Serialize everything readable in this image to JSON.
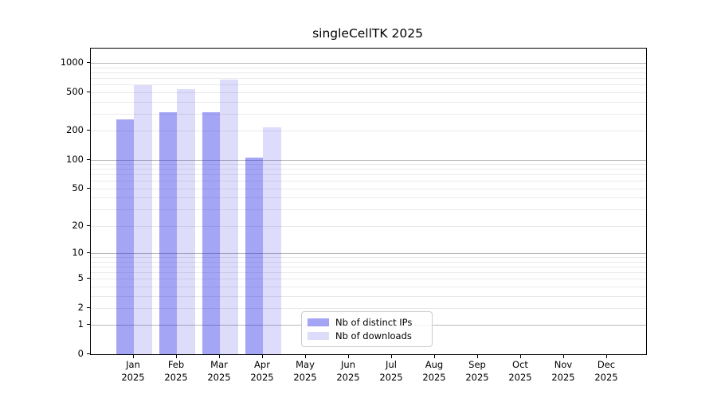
{
  "title": "singleCellTK 2025",
  "chart_data": {
    "type": "bar",
    "title": "singleCellTK 2025",
    "x_tick_months": [
      "Jan",
      "Feb",
      "Mar",
      "Apr",
      "May",
      "Jun",
      "Jul",
      "Aug",
      "Sep",
      "Oct",
      "Nov",
      "Dec"
    ],
    "x_tick_year": "2025",
    "categories": [
      "Jan 2025",
      "Feb 2025",
      "Mar 2025",
      "Apr 2025",
      "May 2025",
      "Jun 2025",
      "Jul 2025",
      "Aug 2025",
      "Sep 2025",
      "Oct 2025",
      "Nov 2025",
      "Dec 2025"
    ],
    "series": [
      {
        "name": "Nb of distinct IPs",
        "color": "#a5a5f1",
        "rgba": "rgba(30,30,230,0.40)",
        "values": [
          260,
          310,
          310,
          106,
          null,
          null,
          null,
          null,
          null,
          null,
          null,
          null
        ]
      },
      {
        "name": "Nb of downloads",
        "color": "#dcdcf8",
        "rgba": "rgba(30,30,230,0.15)",
        "values": [
          590,
          535,
          670,
          218,
          null,
          null,
          null,
          null,
          null,
          null,
          null,
          null
        ]
      }
    ],
    "yscale": "log1p",
    "ylim": [
      0,
      1405
    ],
    "yticks": [
      0,
      1,
      2,
      5,
      10,
      20,
      50,
      100,
      200,
      500,
      1000
    ],
    "grid": true,
    "legend_position": "lower center"
  },
  "colors": {
    "grid_major": "#b8b8b8",
    "grid_minor": "#e9e9e9",
    "spine": "#000000",
    "legend_border": "#cccccc",
    "background": "#ffffff"
  }
}
